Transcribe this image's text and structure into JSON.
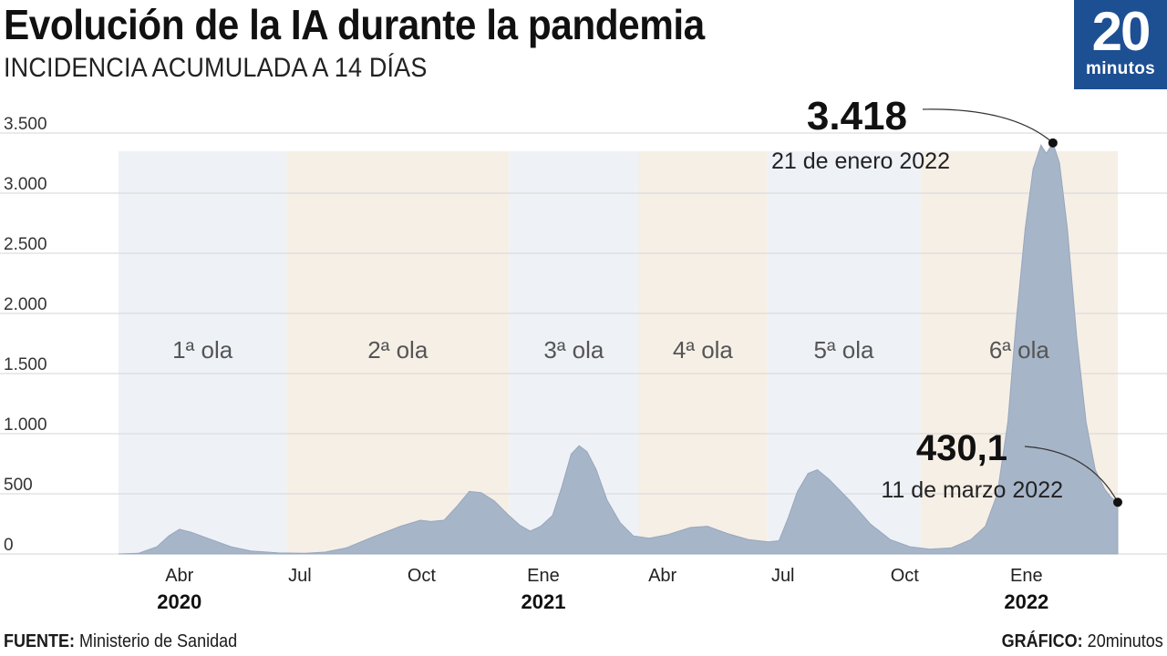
{
  "header": {
    "title": "Evolución de la IA durante la pandemia",
    "subtitle": "INCIDENCIA ACUMULADA A 14 DÍAS"
  },
  "logo": {
    "number": "20",
    "word": "minutos",
    "color": "#1d4f93"
  },
  "footer": {
    "source_label": "FUENTE:",
    "source_value": "Ministerio de Sanidad",
    "graphic_label": "GRÁFICO:",
    "graphic_value": "20minutos"
  },
  "colors": {
    "area": "#a7b5c8",
    "band_blue": "#eef1f6",
    "band_beige": "#f6efe6",
    "grid": "#d6d6d6",
    "text": "#1a1a1a"
  },
  "chart_data": {
    "type": "area",
    "title": "Evolución de la IA durante la pandemia",
    "subtitle": "INCIDENCIA ACUMULADA A 14 DÍAS",
    "xlabel": "",
    "ylabel": "",
    "ylim": [
      0,
      3500
    ],
    "yticks": [
      0,
      500,
      1000,
      1500,
      2000,
      2500,
      3000,
      3500
    ],
    "ytick_labels": [
      "0",
      "500",
      "1.000",
      "1.500",
      "2.000",
      "2.500",
      "3.000",
      "3.500"
    ],
    "grid": true,
    "x_range": [
      "2020-02-15",
      "2022-03-11"
    ],
    "xticks": [
      {
        "date": "2020-04-01",
        "label": "Abr",
        "year": "2020"
      },
      {
        "date": "2020-07-01",
        "label": "Jul",
        "year": ""
      },
      {
        "date": "2020-10-01",
        "label": "Oct",
        "year": ""
      },
      {
        "date": "2021-01-01",
        "label": "Ene",
        "year": "2021"
      },
      {
        "date": "2021-04-01",
        "label": "Abr",
        "year": ""
      },
      {
        "date": "2021-07-01",
        "label": "Jul",
        "year": ""
      },
      {
        "date": "2021-10-01",
        "label": "Oct",
        "year": ""
      },
      {
        "date": "2022-01-01",
        "label": "Ene",
        "year": "2022"
      }
    ],
    "waves": [
      {
        "label": "1ª ola",
        "start": "2020-02-15",
        "end": "2020-06-21",
        "tint": "blue"
      },
      {
        "label": "2ª ola",
        "start": "2020-06-21",
        "end": "2020-12-06",
        "tint": "beige"
      },
      {
        "label": "3ª ola",
        "start": "2020-12-06",
        "end": "2021-03-14",
        "tint": "blue"
      },
      {
        "label": "4ª ola",
        "start": "2021-03-14",
        "end": "2021-06-19",
        "tint": "beige"
      },
      {
        "label": "5ª ola",
        "start": "2021-06-19",
        "end": "2021-10-13",
        "tint": "blue"
      },
      {
        "label": "6ª ola",
        "start": "2021-10-13",
        "end": "2022-03-11",
        "tint": "beige"
      }
    ],
    "series": [
      {
        "points": [
          [
            "2020-02-15",
            0
          ],
          [
            "2020-03-01",
            5
          ],
          [
            "2020-03-15",
            60
          ],
          [
            "2020-03-24",
            150
          ],
          [
            "2020-04-01",
            205
          ],
          [
            "2020-04-10",
            180
          ],
          [
            "2020-04-25",
            120
          ],
          [
            "2020-05-10",
            60
          ],
          [
            "2020-05-25",
            25
          ],
          [
            "2020-06-15",
            8
          ],
          [
            "2020-07-05",
            5
          ],
          [
            "2020-07-20",
            15
          ],
          [
            "2020-08-05",
            50
          ],
          [
            "2020-08-25",
            140
          ],
          [
            "2020-09-15",
            230
          ],
          [
            "2020-09-30",
            280
          ],
          [
            "2020-10-08",
            270
          ],
          [
            "2020-10-18",
            280
          ],
          [
            "2020-10-28",
            400
          ],
          [
            "2020-11-06",
            520
          ],
          [
            "2020-11-15",
            510
          ],
          [
            "2020-11-25",
            440
          ],
          [
            "2020-12-06",
            320
          ],
          [
            "2020-12-14",
            240
          ],
          [
            "2020-12-22",
            190
          ],
          [
            "2020-12-30",
            230
          ],
          [
            "2021-01-08",
            320
          ],
          [
            "2021-01-15",
            560
          ],
          [
            "2021-01-22",
            830
          ],
          [
            "2021-01-28",
            900
          ],
          [
            "2021-02-03",
            850
          ],
          [
            "2021-02-10",
            700
          ],
          [
            "2021-02-18",
            450
          ],
          [
            "2021-02-28",
            260
          ],
          [
            "2021-03-10",
            150
          ],
          [
            "2021-03-22",
            130
          ],
          [
            "2021-04-05",
            160
          ],
          [
            "2021-04-22",
            220
          ],
          [
            "2021-05-05",
            230
          ],
          [
            "2021-05-20",
            170
          ],
          [
            "2021-06-05",
            120
          ],
          [
            "2021-06-20",
            100
          ],
          [
            "2021-06-28",
            110
          ],
          [
            "2021-07-05",
            300
          ],
          [
            "2021-07-12",
            520
          ],
          [
            "2021-07-20",
            670
          ],
          [
            "2021-07-27",
            700
          ],
          [
            "2021-08-05",
            620
          ],
          [
            "2021-08-20",
            450
          ],
          [
            "2021-09-05",
            250
          ],
          [
            "2021-09-20",
            120
          ],
          [
            "2021-10-05",
            60
          ],
          [
            "2021-10-20",
            40
          ],
          [
            "2021-11-05",
            50
          ],
          [
            "2021-11-20",
            120
          ],
          [
            "2021-12-01",
            230
          ],
          [
            "2021-12-10",
            500
          ],
          [
            "2021-12-18",
            1100
          ],
          [
            "2021-12-24",
            1900
          ],
          [
            "2021-12-31",
            2700
          ],
          [
            "2022-01-06",
            3200
          ],
          [
            "2022-01-12",
            3400
          ],
          [
            "2022-01-16",
            3330
          ],
          [
            "2022-01-21",
            3418
          ],
          [
            "2022-01-26",
            3250
          ],
          [
            "2022-02-01",
            2700
          ],
          [
            "2022-02-08",
            1800
          ],
          [
            "2022-02-15",
            1100
          ],
          [
            "2022-02-22",
            700
          ],
          [
            "2022-03-01",
            540
          ],
          [
            "2022-03-06",
            470
          ],
          [
            "2022-03-11",
            430.1
          ]
        ]
      }
    ],
    "annotations": [
      {
        "date": "2022-01-21",
        "value": 3418,
        "value_label": "3.418",
        "date_label": "21 de enero 2022"
      },
      {
        "date": "2022-03-11",
        "value": 430.1,
        "value_label": "430,1",
        "date_label": "11 de marzo 2022"
      }
    ]
  }
}
